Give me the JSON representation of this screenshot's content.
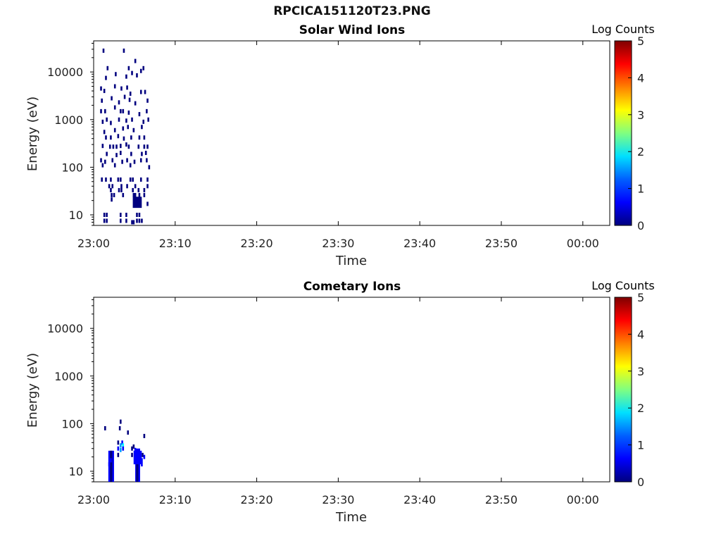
{
  "page_title": "RPCICA151120T23.PNG",
  "colormap": [
    "#00007f",
    "#0000ff",
    "#00a0ff",
    "#00ffff",
    "#80ff80",
    "#ffff00",
    "#ff8000",
    "#ff0000",
    "#7f0000"
  ],
  "chart_data": [
    {
      "type": "heatmap",
      "title": "Solar Wind Ions",
      "xlabel": "Time",
      "ylabel": "Energy (eV)",
      "x_tick_labels": [
        "23:00",
        "23:10",
        "23:20",
        "23:30",
        "23:40",
        "23:50",
        "00:00"
      ],
      "x_tick_minutes": [
        0,
        10,
        20,
        30,
        40,
        50,
        60
      ],
      "xlim_minutes": [
        0,
        63.3
      ],
      "y_scale": "log",
      "ylim": [
        6,
        45000
      ],
      "y_tick_values": [
        10,
        100,
        1000,
        10000
      ],
      "y_tick_labels": [
        "10",
        "100",
        "1000",
        "10000"
      ],
      "colorbar": {
        "label": "Log Counts",
        "range": [
          0,
          5
        ],
        "tick_labels": [
          "0",
          "1",
          "2",
          "3",
          "4",
          "5"
        ]
      },
      "points": [
        {
          "t": 1.2,
          "e": 28000
        },
        {
          "t": 3.7,
          "e": 28000
        },
        {
          "t": 5.1,
          "e": 17000
        },
        {
          "t": 1.7,
          "e": 12000
        },
        {
          "t": 4.3,
          "e": 12000
        },
        {
          "t": 5.8,
          "e": 10500
        },
        {
          "t": 6.1,
          "e": 12000
        },
        {
          "t": 1.5,
          "e": 7500
        },
        {
          "t": 2.7,
          "e": 9000
        },
        {
          "t": 4.0,
          "e": 8000
        },
        {
          "t": 4.7,
          "e": 9500
        },
        {
          "t": 5.3,
          "e": 8500
        },
        {
          "t": 0.9,
          "e": 4500
        },
        {
          "t": 1.3,
          "e": 4000
        },
        {
          "t": 2.6,
          "e": 5000
        },
        {
          "t": 3.4,
          "e": 4500
        },
        {
          "t": 4.1,
          "e": 4700
        },
        {
          "t": 4.5,
          "e": 3500
        },
        {
          "t": 5.8,
          "e": 3800
        },
        {
          "t": 6.3,
          "e": 3800
        },
        {
          "t": 1.0,
          "e": 2500
        },
        {
          "t": 2.2,
          "e": 2800
        },
        {
          "t": 3.1,
          "e": 2300
        },
        {
          "t": 3.8,
          "e": 3000
        },
        {
          "t": 4.4,
          "e": 2600
        },
        {
          "t": 5.1,
          "e": 2200
        },
        {
          "t": 6.6,
          "e": 2500
        },
        {
          "t": 0.9,
          "e": 1500
        },
        {
          "t": 1.4,
          "e": 1500
        },
        {
          "t": 2.6,
          "e": 1800
        },
        {
          "t": 3.3,
          "e": 1500
        },
        {
          "t": 3.6,
          "e": 1500
        },
        {
          "t": 4.3,
          "e": 1400
        },
        {
          "t": 5.6,
          "e": 1300
        },
        {
          "t": 6.5,
          "e": 1500
        },
        {
          "t": 1.1,
          "e": 900
        },
        {
          "t": 1.6,
          "e": 1000
        },
        {
          "t": 2.1,
          "e": 850
        },
        {
          "t": 3.1,
          "e": 1000
        },
        {
          "t": 4.0,
          "e": 950
        },
        {
          "t": 4.7,
          "e": 1000
        },
        {
          "t": 6.1,
          "e": 900
        },
        {
          "t": 6.7,
          "e": 1000
        },
        {
          "t": 1.3,
          "e": 550
        },
        {
          "t": 2.6,
          "e": 600
        },
        {
          "t": 3.6,
          "e": 650
        },
        {
          "t": 4.2,
          "e": 700
        },
        {
          "t": 4.9,
          "e": 600
        },
        {
          "t": 5.9,
          "e": 700
        },
        {
          "t": 1.5,
          "e": 420
        },
        {
          "t": 2.1,
          "e": 420
        },
        {
          "t": 3.0,
          "e": 450
        },
        {
          "t": 3.7,
          "e": 400
        },
        {
          "t": 4.6,
          "e": 420
        },
        {
          "t": 5.6,
          "e": 420
        },
        {
          "t": 6.2,
          "e": 420
        },
        {
          "t": 1.1,
          "e": 280
        },
        {
          "t": 2.0,
          "e": 270
        },
        {
          "t": 2.4,
          "e": 270
        },
        {
          "t": 2.8,
          "e": 270
        },
        {
          "t": 3.3,
          "e": 280
        },
        {
          "t": 4.0,
          "e": 300
        },
        {
          "t": 4.3,
          "e": 270
        },
        {
          "t": 5.5,
          "e": 270
        },
        {
          "t": 6.2,
          "e": 270
        },
        {
          "t": 6.6,
          "e": 270
        },
        {
          "t": 1.6,
          "e": 190
        },
        {
          "t": 2.8,
          "e": 180
        },
        {
          "t": 3.3,
          "e": 200
        },
        {
          "t": 4.6,
          "e": 190
        },
        {
          "t": 5.9,
          "e": 190
        },
        {
          "t": 6.4,
          "e": 200
        },
        {
          "t": 0.9,
          "e": 140
        },
        {
          "t": 1.4,
          "e": 130
        },
        {
          "t": 2.3,
          "e": 140
        },
        {
          "t": 3.5,
          "e": 130
        },
        {
          "t": 4.1,
          "e": 140
        },
        {
          "t": 5.0,
          "e": 130
        },
        {
          "t": 5.8,
          "e": 140
        },
        {
          "t": 6.5,
          "e": 140
        },
        {
          "t": 1.1,
          "e": 110
        },
        {
          "t": 2.6,
          "e": 110
        },
        {
          "t": 4.5,
          "e": 110
        },
        {
          "t": 6.8,
          "e": 100
        },
        {
          "t": 1.0,
          "e": 55
        },
        {
          "t": 1.5,
          "e": 55
        },
        {
          "t": 2.1,
          "e": 55
        },
        {
          "t": 3.0,
          "e": 55
        },
        {
          "t": 3.3,
          "e": 55
        },
        {
          "t": 4.5,
          "e": 55
        },
        {
          "t": 4.8,
          "e": 55
        },
        {
          "t": 5.8,
          "e": 55
        },
        {
          "t": 6.6,
          "e": 55
        },
        {
          "t": 1.9,
          "e": 40
        },
        {
          "t": 2.3,
          "e": 40
        },
        {
          "t": 3.4,
          "e": 40
        },
        {
          "t": 4.1,
          "e": 40
        },
        {
          "t": 5.1,
          "e": 40
        },
        {
          "t": 6.6,
          "e": 40
        },
        {
          "t": 2.1,
          "e": 33
        },
        {
          "t": 3.1,
          "e": 33
        },
        {
          "t": 3.4,
          "e": 33
        },
        {
          "t": 4.8,
          "e": 33
        },
        {
          "t": 5.5,
          "e": 33
        },
        {
          "t": 6.2,
          "e": 33
        },
        {
          "t": 2.2,
          "e": 26
        },
        {
          "t": 2.5,
          "e": 26
        },
        {
          "t": 3.6,
          "e": 26
        },
        {
          "t": 4.9,
          "e": 26
        },
        {
          "t": 5.1,
          "e": 26
        },
        {
          "t": 5.6,
          "e": 26
        },
        {
          "t": 6.2,
          "e": 26
        },
        {
          "t": 2.2,
          "e": 21
        },
        {
          "t": 5.0,
          "e": 21
        },
        {
          "t": 5.3,
          "e": 21
        },
        {
          "t": 5.6,
          "e": 21
        },
        {
          "t": 5.3,
          "e": 17
        },
        {
          "t": 5.6,
          "e": 17
        },
        {
          "t": 6.6,
          "e": 17
        },
        {
          "t": 1.3,
          "e": 10
        },
        {
          "t": 1.6,
          "e": 10
        },
        {
          "t": 3.3,
          "e": 10
        },
        {
          "t": 4.0,
          "e": 10
        },
        {
          "t": 5.3,
          "e": 10
        },
        {
          "t": 5.6,
          "e": 10
        },
        {
          "t": 1.3,
          "e": 7.5
        },
        {
          "t": 1.6,
          "e": 7.5
        },
        {
          "t": 3.3,
          "e": 7.5
        },
        {
          "t": 4.0,
          "e": 7.5
        },
        {
          "t": 5.3,
          "e": 7.5
        },
        {
          "t": 5.6,
          "e": 7.5
        },
        {
          "t": 5.9,
          "e": 7.5
        },
        {
          "t": 4.7,
          "e": 7.0
        },
        {
          "t": 4.9,
          "e": 7.0
        }
      ],
      "bands": [
        {
          "t0": 4.8,
          "t1": 5.9,
          "e0": 14,
          "e1": 24
        }
      ]
    },
    {
      "type": "heatmap",
      "title": "Cometary Ions",
      "xlabel": "Time",
      "ylabel": "Energy (eV)",
      "x_tick_labels": [
        "23:00",
        "23:10",
        "23:20",
        "23:30",
        "23:40",
        "23:50",
        "00:00"
      ],
      "x_tick_minutes": [
        0,
        10,
        20,
        30,
        40,
        50,
        60
      ],
      "xlim_minutes": [
        0,
        63.3
      ],
      "y_scale": "log",
      "ylim": [
        6,
        45000
      ],
      "y_tick_values": [
        10,
        100,
        1000,
        10000
      ],
      "y_tick_labels": [
        "10",
        "100",
        "1000",
        "10000"
      ],
      "colorbar": {
        "label": "Log Counts",
        "range": [
          0,
          5
        ],
        "tick_labels": [
          "0",
          "1",
          "2",
          "3",
          "4",
          "5"
        ]
      },
      "points": [
        {
          "t": 1.4,
          "e": 80,
          "v": 0.1
        },
        {
          "t": 3.3,
          "e": 110,
          "v": 0.1
        },
        {
          "t": 3.2,
          "e": 80,
          "v": 0.1
        },
        {
          "t": 4.2,
          "e": 65,
          "v": 0.1
        },
        {
          "t": 6.2,
          "e": 55,
          "v": 0.2
        },
        {
          "t": 3.5,
          "e": 40,
          "v": 0.8
        },
        {
          "t": 3.3,
          "e": 35,
          "v": 1.5
        },
        {
          "t": 3.6,
          "e": 35,
          "v": 1.8
        },
        {
          "t": 3.0,
          "e": 40,
          "v": 0.3
        },
        {
          "t": 3.0,
          "e": 30,
          "v": 0.5
        },
        {
          "t": 3.3,
          "e": 28,
          "v": 1.0
        },
        {
          "t": 3.6,
          "e": 30,
          "v": 0.7
        },
        {
          "t": 4.7,
          "e": 30,
          "v": 0.3
        },
        {
          "t": 5.1,
          "e": 28,
          "v": 0.8
        },
        {
          "t": 4.9,
          "e": 33,
          "v": 0.2
        },
        {
          "t": 3.0,
          "e": 22,
          "v": 0.2
        },
        {
          "t": 6.2,
          "e": 20,
          "v": 0.4
        },
        {
          "t": 6.0,
          "e": 22,
          "v": 0.3
        },
        {
          "t": 4.7,
          "e": 22,
          "v": 0.3
        },
        {
          "t": 5.9,
          "e": 17,
          "v": 0.8
        },
        {
          "t": 2.1,
          "e": 17,
          "v": 0.5
        },
        {
          "t": 5.9,
          "e": 14,
          "v": 0.7
        },
        {
          "t": 1.9,
          "e": 14,
          "v": 0.4
        }
      ],
      "bands": [
        {
          "t0": 1.8,
          "t1": 2.5,
          "e0": 6,
          "e1": 27,
          "v": 0.7
        },
        {
          "t0": 2.0,
          "t1": 2.3,
          "e0": 6,
          "e1": 27,
          "v": 0.3
        },
        {
          "t0": 4.9,
          "t1": 5.9,
          "e0": 14,
          "e1": 27,
          "v": 0.8
        },
        {
          "t0": 5.1,
          "t1": 5.7,
          "e0": 6,
          "e1": 30,
          "v": 0.5
        },
        {
          "t0": 5.2,
          "t1": 5.5,
          "e0": 6,
          "e1": 14,
          "v": 0.1
        }
      ]
    }
  ]
}
